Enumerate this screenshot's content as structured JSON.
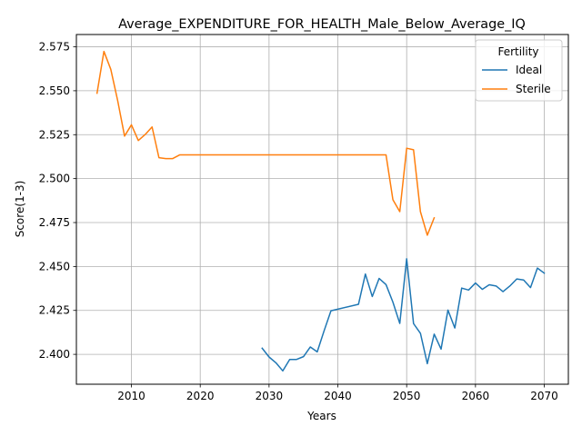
{
  "chart_data": {
    "type": "line",
    "title": "Average_EXPENDITURE_FOR_HEALTH_Male_Below_Average_IQ",
    "xlabel": "Years",
    "ylabel": "Score(1-3)",
    "xlim": [
      2002,
      2073.5
    ],
    "ylim": [
      2.383,
      2.582
    ],
    "xticks": [
      2010,
      2020,
      2030,
      2040,
      2050,
      2060,
      2070
    ],
    "yticks": [
      2.4,
      2.425,
      2.45,
      2.475,
      2.5,
      2.525,
      2.55,
      2.575
    ],
    "ytick_labels": [
      "2.400",
      "2.425",
      "2.450",
      "2.475",
      "2.500",
      "2.525",
      "2.550",
      "2.575"
    ],
    "grid": true,
    "legend": {
      "title": "Fertility",
      "placement": "top-right"
    },
    "series": [
      {
        "name": "Ideal",
        "color": "#1f77b4",
        "x": [
          2029,
          2030,
          2031,
          2032,
          2033,
          2034,
          2035,
          2036,
          2037,
          2038,
          2039,
          2043,
          2044,
          2045,
          2046,
          2047,
          2048,
          2049,
          2050,
          2051,
          2052,
          2053,
          2054,
          2055,
          2056,
          2057,
          2058,
          2059,
          2060,
          2061,
          2062,
          2063,
          2064,
          2065,
          2066,
          2067,
          2068,
          2069,
          2070
        ],
        "y": [
          2.4035,
          2.3985,
          2.3952,
          2.3906,
          2.3971,
          2.3971,
          2.3987,
          2.4042,
          2.4014,
          2.4134,
          2.4248,
          2.4285,
          2.4457,
          2.4329,
          2.4432,
          2.4397,
          2.4297,
          2.4176,
          2.4544,
          2.4175,
          2.412,
          2.3947,
          2.4115,
          2.403,
          2.4252,
          2.415,
          2.4377,
          2.4366,
          2.4406,
          2.437,
          2.4396,
          2.4389,
          2.4357,
          2.4389,
          2.4429,
          2.4423,
          2.438,
          2.4491,
          2.4462
        ]
      },
      {
        "name": "Sterile",
        "color": "#ff7f0e",
        "x": [
          2005,
          2006,
          2007,
          2008,
          2009,
          2010,
          2011,
          2012,
          2013,
          2014,
          2015,
          2016,
          2017,
          2047,
          2048,
          2049,
          2050,
          2051,
          2052,
          2053,
          2054
        ],
        "y": [
          2.5486,
          2.5724,
          2.5622,
          2.5444,
          2.5242,
          2.5306,
          2.5217,
          2.5251,
          2.5294,
          2.5119,
          2.5114,
          2.5114,
          2.5135,
          2.5135,
          2.488,
          2.4812,
          2.5173,
          2.5164,
          2.4812,
          2.4678,
          2.4777
        ]
      }
    ]
  }
}
